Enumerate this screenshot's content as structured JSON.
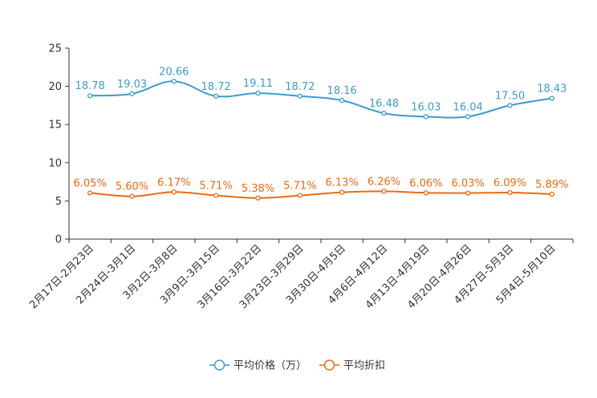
{
  "chart_data": {
    "type": "line",
    "categories": [
      "2月17日-2月23日",
      "2月24日-3月1日",
      "3月2日-3月8日",
      "3月9日-3月15日",
      "3月16日-3月22日",
      "3月23日-3月29日",
      "3月30日-4月5日",
      "4月6日-4月12日",
      "4月13日-4月19日",
      "4月20日-4月26日",
      "4月27日-5月3日",
      "5月4日-5月10日"
    ],
    "ylim": [
      0,
      25
    ],
    "yticks": [
      "0",
      "5",
      "10",
      "15",
      "20",
      "25"
    ],
    "series": [
      {
        "name": "平均价格（万）",
        "color": "#3c9bcc",
        "values": [
          18.78,
          19.03,
          20.66,
          18.72,
          19.11,
          18.72,
          18.16,
          16.48,
          16.03,
          16.04,
          17.5,
          18.43
        ],
        "labels": [
          "18.78",
          "19.03",
          "20.66",
          "18.72",
          "19.11",
          "18.72",
          "18.16",
          "16.48",
          "16.03",
          "16.04",
          "17.50",
          "18.43"
        ]
      },
      {
        "name": "平均折扣",
        "color": "#ee6a11",
        "values": [
          6.05,
          5.6,
          6.17,
          5.71,
          5.38,
          5.71,
          6.13,
          6.26,
          6.06,
          6.03,
          6.09,
          5.89
        ],
        "labels": [
          "6.05%",
          "5.60%",
          "6.17%",
          "5.71%",
          "5.38%",
          "5.71%",
          "6.13%",
          "6.26%",
          "6.06%",
          "6.03%",
          "6.09%",
          "5.89%"
        ]
      }
    ],
    "legend_position": "bottom-center",
    "grid": false
  }
}
